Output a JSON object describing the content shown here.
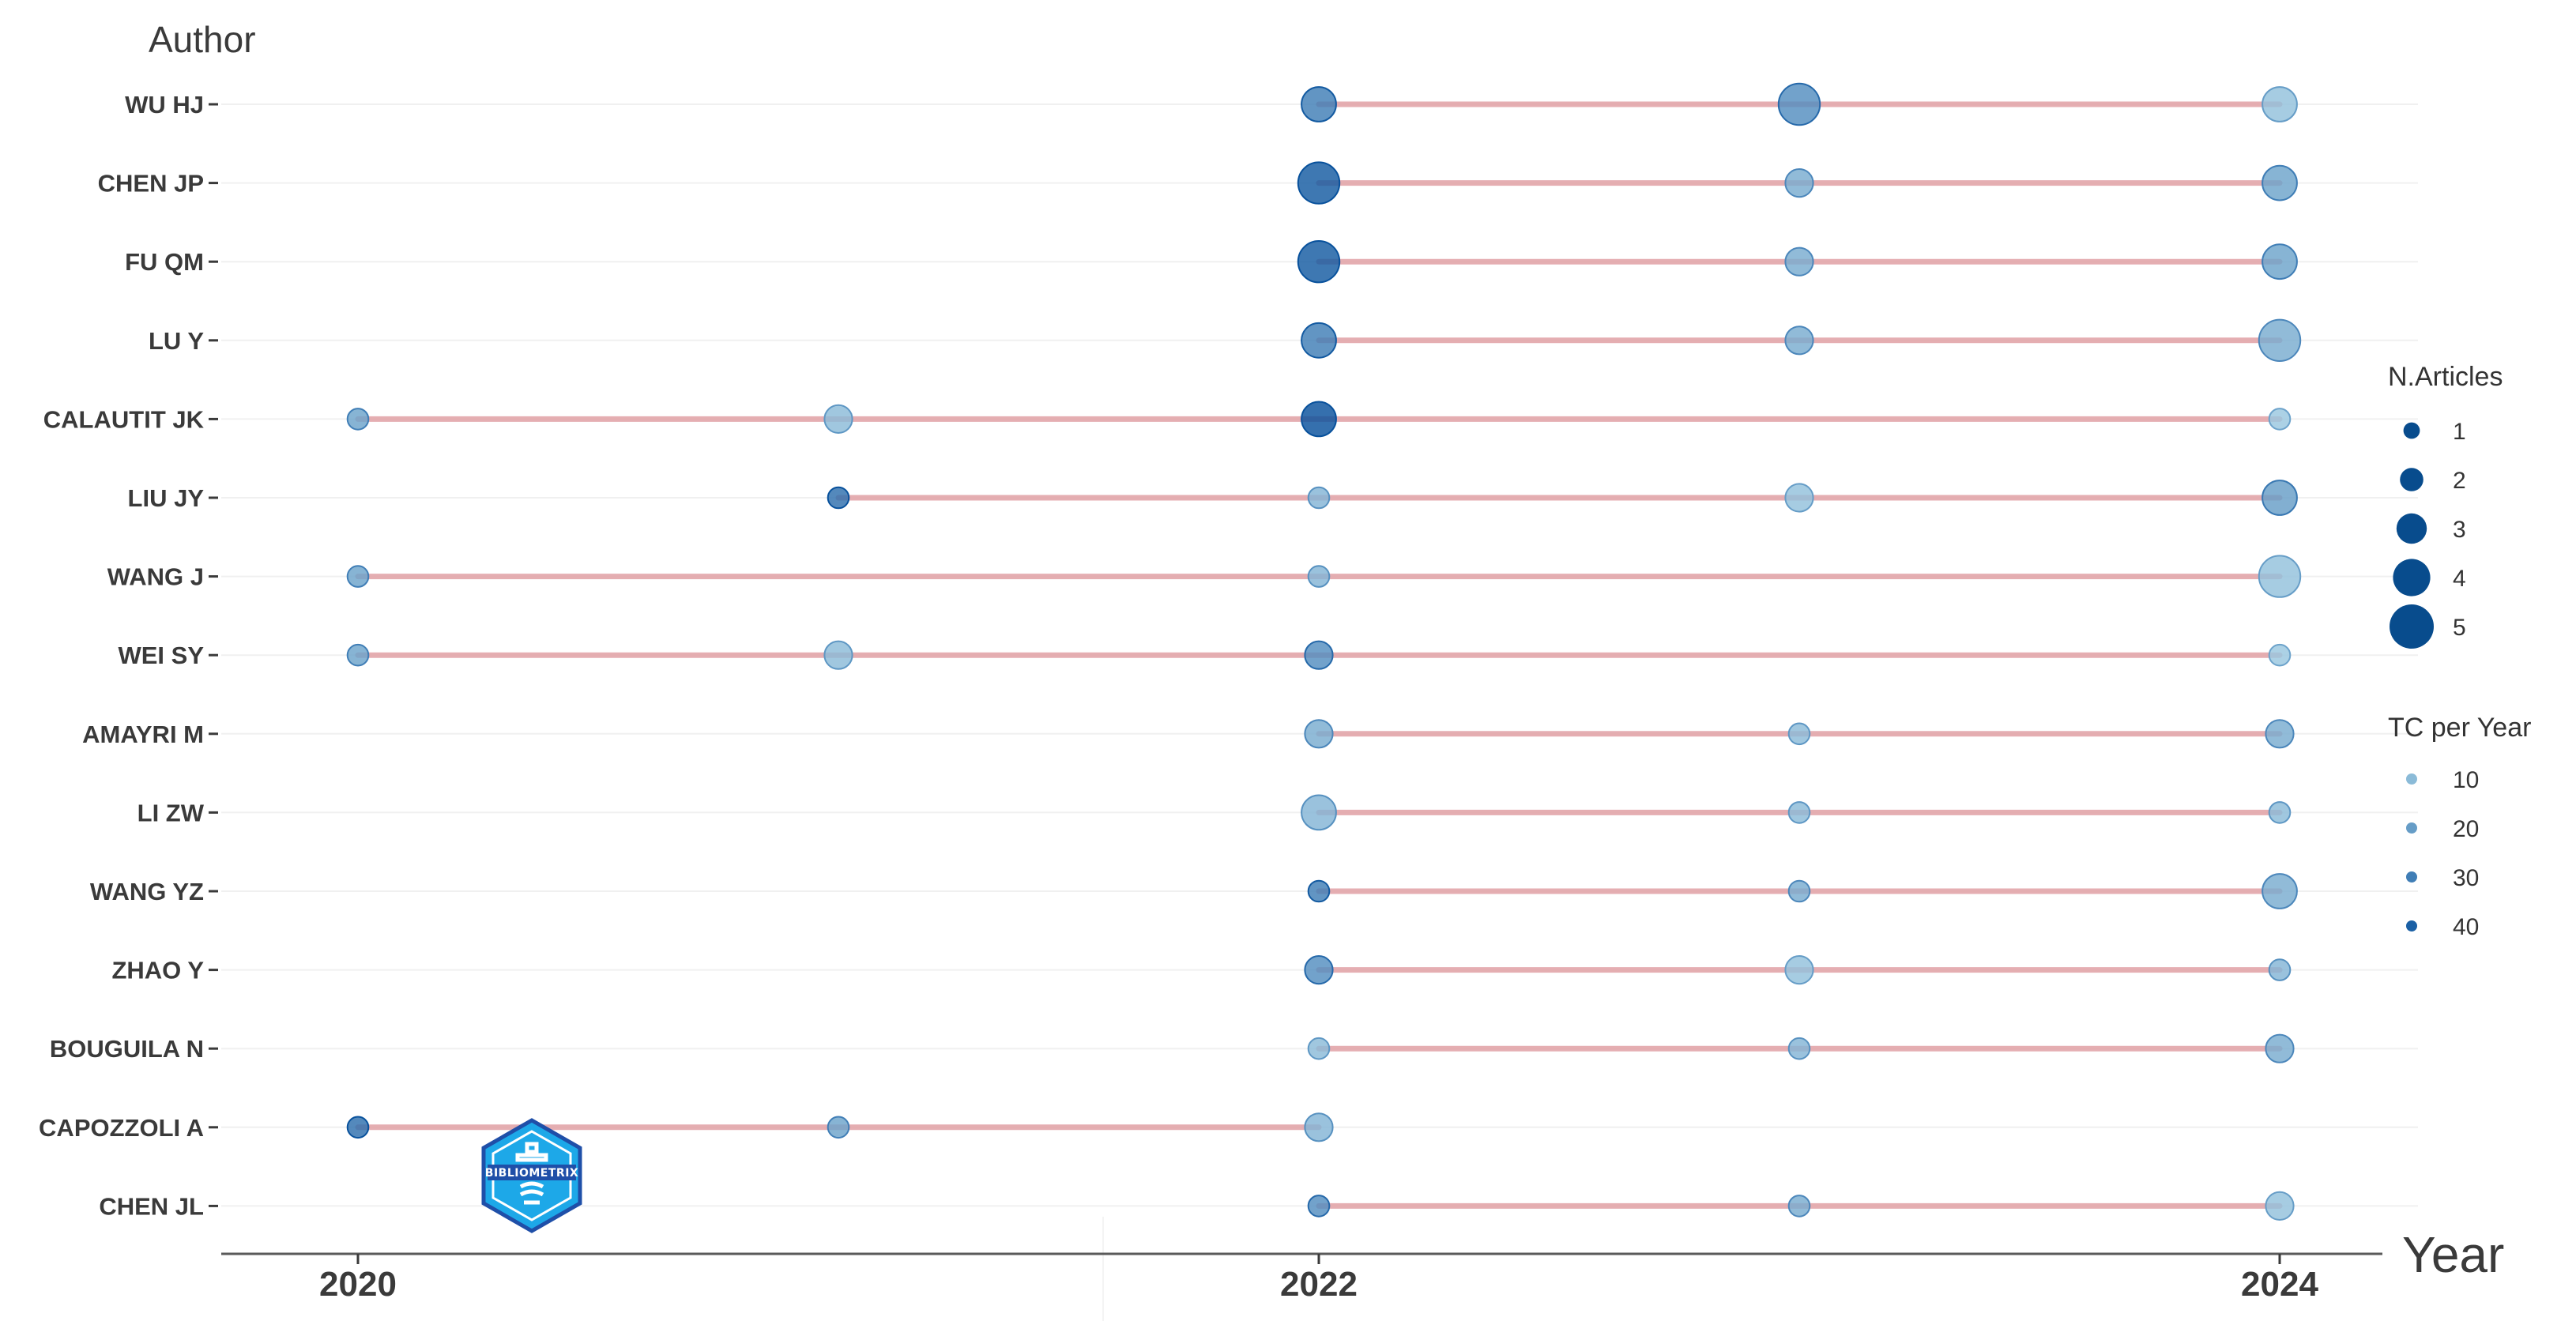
{
  "chart_data": {
    "type": "scatter",
    "title": "",
    "ylabel": "Author",
    "xlabel": "Year",
    "x_ticks": [
      2020,
      2022,
      2024
    ],
    "xlim": [
      2019.7,
      2024.2
    ],
    "authors": [
      "WU HJ",
      "CHEN JP",
      "FU QM",
      "LU Y",
      "CALAUTIT JK",
      "LIU JY",
      "WANG J",
      "WEI SY",
      "AMAYRI M",
      "LI ZW",
      "WANG YZ",
      "ZHAO Y",
      "BOUGUILA N",
      "CAPOZZOLI A",
      "CHEN JL"
    ],
    "ranges": [
      {
        "author": "WU HJ",
        "start": 2022,
        "end": 2024
      },
      {
        "author": "CHEN JP",
        "start": 2022,
        "end": 2024
      },
      {
        "author": "FU QM",
        "start": 2022,
        "end": 2024
      },
      {
        "author": "LU Y",
        "start": 2022,
        "end": 2024
      },
      {
        "author": "CALAUTIT JK",
        "start": 2020,
        "end": 2024
      },
      {
        "author": "LIU JY",
        "start": 2021,
        "end": 2024
      },
      {
        "author": "WANG J",
        "start": 2020,
        "end": 2024
      },
      {
        "author": "WEI SY",
        "start": 2020,
        "end": 2024
      },
      {
        "author": "AMAYRI M",
        "start": 2022,
        "end": 2024
      },
      {
        "author": "LI ZW",
        "start": 2022,
        "end": 2024
      },
      {
        "author": "WANG YZ",
        "start": 2022,
        "end": 2024
      },
      {
        "author": "ZHAO Y",
        "start": 2022,
        "end": 2024
      },
      {
        "author": "BOUGUILA N",
        "start": 2022,
        "end": 2024
      },
      {
        "author": "CAPOZZOLI A",
        "start": 2020,
        "end": 2022
      },
      {
        "author": "CHEN JL",
        "start": 2022,
        "end": 2024
      }
    ],
    "points": [
      {
        "author": "WU HJ",
        "year": 2022,
        "n_articles": 3,
        "tc_per_year": 30
      },
      {
        "author": "WU HJ",
        "year": 2023,
        "n_articles": 4,
        "tc_per_year": 25
      },
      {
        "author": "WU HJ",
        "year": 2024,
        "n_articles": 3,
        "tc_per_year": 8
      },
      {
        "author": "CHEN JP",
        "year": 2022,
        "n_articles": 4,
        "tc_per_year": 42
      },
      {
        "author": "CHEN JP",
        "year": 2023,
        "n_articles": 2,
        "tc_per_year": 15
      },
      {
        "author": "CHEN JP",
        "year": 2024,
        "n_articles": 3,
        "tc_per_year": 18
      },
      {
        "author": "FU QM",
        "year": 2022,
        "n_articles": 4,
        "tc_per_year": 42
      },
      {
        "author": "FU QM",
        "year": 2023,
        "n_articles": 2,
        "tc_per_year": 15
      },
      {
        "author": "FU QM",
        "year": 2024,
        "n_articles": 3,
        "tc_per_year": 18
      },
      {
        "author": "LU Y",
        "year": 2022,
        "n_articles": 3,
        "tc_per_year": 30
      },
      {
        "author": "LU Y",
        "year": 2023,
        "n_articles": 2,
        "tc_per_year": 15
      },
      {
        "author": "LU Y",
        "year": 2024,
        "n_articles": 4,
        "tc_per_year": 15
      },
      {
        "author": "CALAUTIT JK",
        "year": 2020,
        "n_articles": 1,
        "tc_per_year": 18
      },
      {
        "author": "CALAUTIT JK",
        "year": 2021,
        "n_articles": 2,
        "tc_per_year": 10
      },
      {
        "author": "CALAUTIT JK",
        "year": 2022,
        "n_articles": 3,
        "tc_per_year": 45
      },
      {
        "author": "CALAUTIT JK",
        "year": 2024,
        "n_articles": 1,
        "tc_per_year": 6
      },
      {
        "author": "LIU JY",
        "year": 2021,
        "n_articles": 1,
        "tc_per_year": 35
      },
      {
        "author": "LIU JY",
        "year": 2022,
        "n_articles": 1,
        "tc_per_year": 12
      },
      {
        "author": "LIU JY",
        "year": 2023,
        "n_articles": 2,
        "tc_per_year": 8
      },
      {
        "author": "LIU JY",
        "year": 2024,
        "n_articles": 3,
        "tc_per_year": 20
      },
      {
        "author": "WANG J",
        "year": 2020,
        "n_articles": 1,
        "tc_per_year": 18
      },
      {
        "author": "WANG J",
        "year": 2022,
        "n_articles": 1,
        "tc_per_year": 12
      },
      {
        "author": "WANG J",
        "year": 2024,
        "n_articles": 4,
        "tc_per_year": 8
      },
      {
        "author": "WEI SY",
        "year": 2020,
        "n_articles": 1,
        "tc_per_year": 18
      },
      {
        "author": "WEI SY",
        "year": 2021,
        "n_articles": 2,
        "tc_per_year": 10
      },
      {
        "author": "WEI SY",
        "year": 2022,
        "n_articles": 2,
        "tc_per_year": 25
      },
      {
        "author": "WEI SY",
        "year": 2024,
        "n_articles": 1,
        "tc_per_year": 6
      },
      {
        "author": "AMAYRI M",
        "year": 2022,
        "n_articles": 2,
        "tc_per_year": 15
      },
      {
        "author": "AMAYRI M",
        "year": 2023,
        "n_articles": 1,
        "tc_per_year": 10
      },
      {
        "author": "AMAYRI M",
        "year": 2024,
        "n_articles": 2,
        "tc_per_year": 15
      },
      {
        "author": "LI ZW",
        "year": 2022,
        "n_articles": 3,
        "tc_per_year": 12
      },
      {
        "author": "LI ZW",
        "year": 2023,
        "n_articles": 1,
        "tc_per_year": 10
      },
      {
        "author": "LI ZW",
        "year": 2024,
        "n_articles": 1,
        "tc_per_year": 10
      },
      {
        "author": "WANG YZ",
        "year": 2022,
        "n_articles": 1,
        "tc_per_year": 30
      },
      {
        "author": "WANG YZ",
        "year": 2023,
        "n_articles": 1,
        "tc_per_year": 15
      },
      {
        "author": "WANG YZ",
        "year": 2024,
        "n_articles": 3,
        "tc_per_year": 15
      },
      {
        "author": "ZHAO Y",
        "year": 2022,
        "n_articles": 2,
        "tc_per_year": 25
      },
      {
        "author": "ZHAO Y",
        "year": 2023,
        "n_articles": 2,
        "tc_per_year": 8
      },
      {
        "author": "ZHAO Y",
        "year": 2024,
        "n_articles": 1,
        "tc_per_year": 12
      },
      {
        "author": "BOUGUILA N",
        "year": 2022,
        "n_articles": 1,
        "tc_per_year": 10
      },
      {
        "author": "BOUGUILA N",
        "year": 2023,
        "n_articles": 1,
        "tc_per_year": 12
      },
      {
        "author": "BOUGUILA N",
        "year": 2024,
        "n_articles": 2,
        "tc_per_year": 15
      },
      {
        "author": "CAPOZZOLI A",
        "year": 2020,
        "n_articles": 1,
        "tc_per_year": 35
      },
      {
        "author": "CAPOZZOLI A",
        "year": 2021,
        "n_articles": 1,
        "tc_per_year": 18
      },
      {
        "author": "CAPOZZOLI A",
        "year": 2022,
        "n_articles": 2,
        "tc_per_year": 12
      },
      {
        "author": "CHEN JL",
        "year": 2022,
        "n_articles": 1,
        "tc_per_year": 25
      },
      {
        "author": "CHEN JL",
        "year": 2023,
        "n_articles": 1,
        "tc_per_year": 15
      },
      {
        "author": "CHEN JL",
        "year": 2024,
        "n_articles": 2,
        "tc_per_year": 8
      }
    ],
    "legend": {
      "size_title": "N.Articles",
      "size_values": [
        1,
        2,
        3,
        4,
        5
      ],
      "color_title": "TC per Year",
      "color_values": [
        10,
        20,
        30,
        40
      ],
      "placement": "right"
    },
    "colors": {
      "point_dark": "#08519c",
      "point_light": "#9ecae1",
      "segment": "#e3a6aa",
      "legend_size_fill": "#084c8d"
    },
    "grid": true
  },
  "watermark": {
    "text": "BIBLIOMETRIX"
  }
}
